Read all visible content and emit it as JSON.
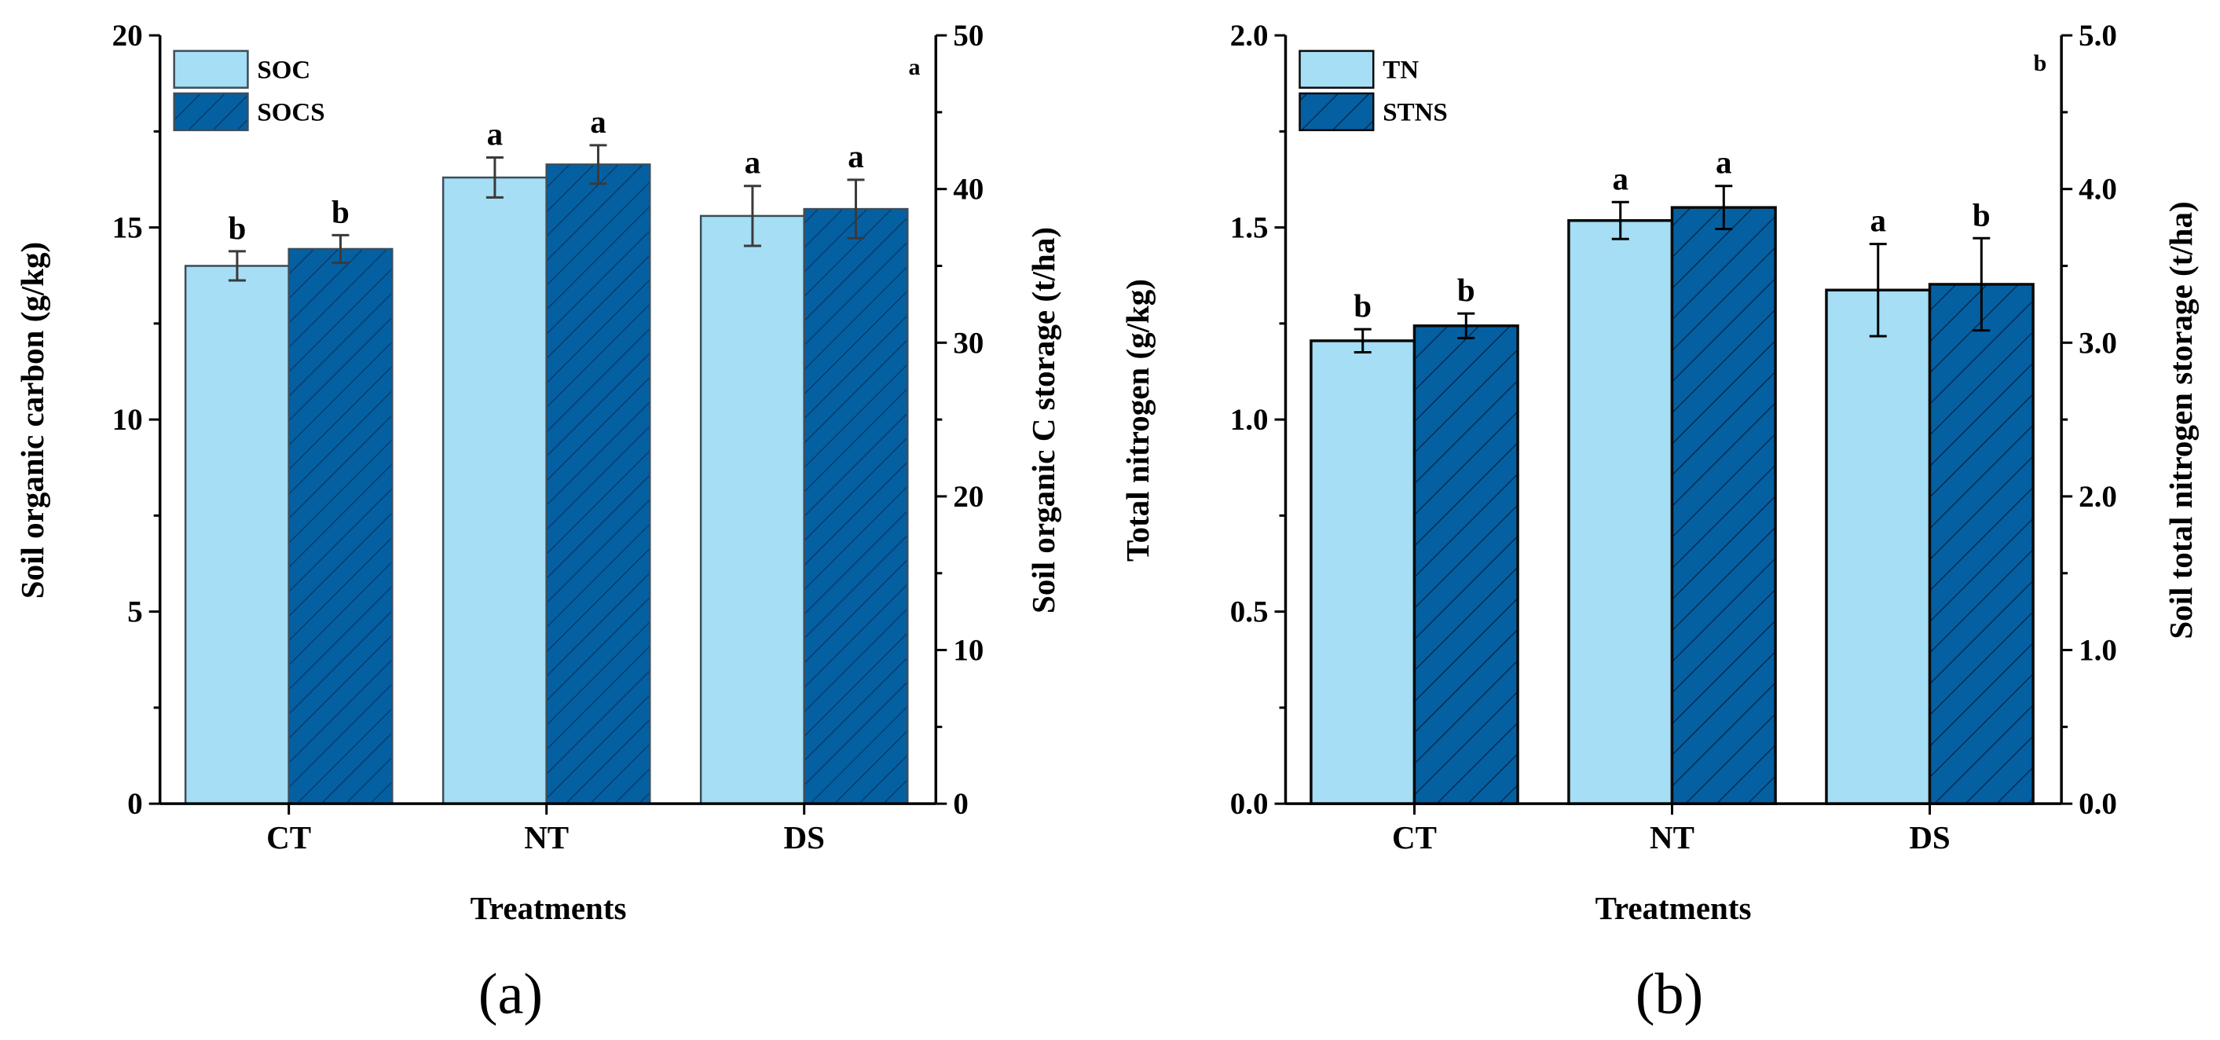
{
  "colors": {
    "light_bar": "#a5def5",
    "dark_bar": "#0560a2",
    "hatch_line": "#033e6c",
    "axis": "#000000",
    "error_bar": "#3a3a3a"
  },
  "chart_data": [
    {
      "type": "bar",
      "panel_caption": "(a)",
      "corner_label": "a",
      "categories": [
        "CT",
        "NT",
        "DS"
      ],
      "xlabel": "Treatments",
      "ylabel": "Soil organic carbon (g/kg)",
      "ylabel_right": "Soil organic C storage (t/ha)",
      "ylim": [
        0,
        20
      ],
      "ylim_right": [
        0,
        50
      ],
      "yticks": [
        "0",
        "5",
        "10",
        "15",
        "20"
      ],
      "yticks_right": [
        "0",
        "10",
        "20",
        "30",
        "40",
        "50"
      ],
      "legend_position": "top-left",
      "series": [
        {
          "name": "SOC",
          "axis": "left",
          "pattern": "solid",
          "values": [
            14.0,
            16.3,
            15.3
          ],
          "errors": [
            0.38,
            0.52,
            0.78
          ],
          "labels": [
            "b",
            "a",
            "a"
          ]
        },
        {
          "name": "SOCS",
          "axis": "right",
          "pattern": "hatched",
          "values": [
            36.1,
            41.6,
            38.7
          ],
          "errors": [
            0.9,
            1.25,
            1.9
          ],
          "labels": [
            "b",
            "a",
            "a"
          ]
        }
      ]
    },
    {
      "type": "bar",
      "panel_caption": "(b)",
      "corner_label": "b",
      "categories": [
        "CT",
        "NT",
        "DS"
      ],
      "xlabel": "Treatments",
      "ylabel": "Total nitrogen (g/kg)",
      "ylabel_right": "Soil total nitrogen storage (t/ha)",
      "ylim": [
        0,
        2.0
      ],
      "ylim_right": [
        0,
        5.0
      ],
      "yticks": [
        "0.0",
        "0.5",
        "1.0",
        "1.5",
        "2.0"
      ],
      "yticks_right": [
        "0.0",
        "1.0",
        "2.0",
        "3.0",
        "4.0",
        "5.0"
      ],
      "legend_position": "top-left",
      "series": [
        {
          "name": "TN",
          "axis": "left",
          "pattern": "solid",
          "values": [
            1.205,
            1.518,
            1.337
          ],
          "errors": [
            0.03,
            0.048,
            0.12
          ],
          "labels": [
            "b",
            "a",
            "a"
          ]
        },
        {
          "name": "STNS",
          "axis": "right",
          "pattern": "hatched",
          "values": [
            3.11,
            3.88,
            3.38
          ],
          "errors": [
            0.08,
            0.14,
            0.3
          ],
          "labels": [
            "b",
            "a",
            "b"
          ]
        }
      ]
    }
  ]
}
